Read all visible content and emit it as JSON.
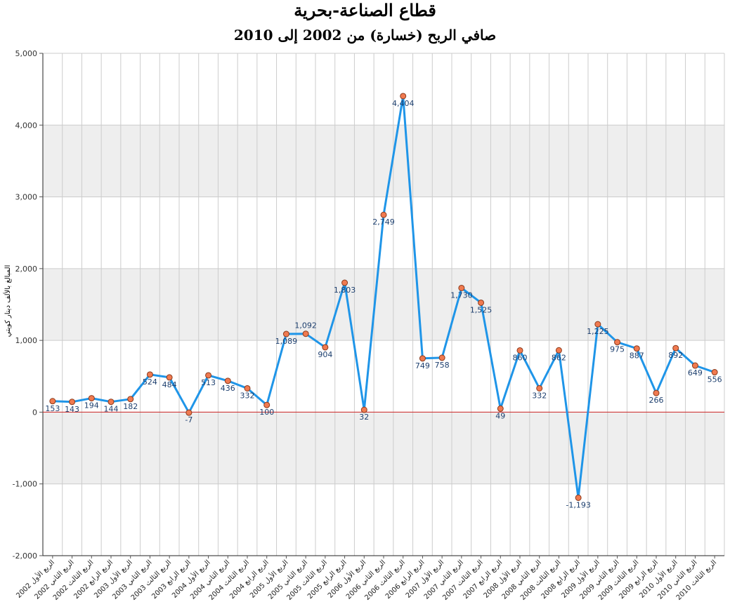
{
  "chart_data": {
    "type": "line",
    "title": "قطاع الصناعة-بحرية",
    "subtitle": "صافي الربح (خسارة) من 2002 إلى 2010",
    "ylabel": "المبالغ بالألف دينار كويتي",
    "xlabel": "",
    "ylim": [
      -2000,
      5000
    ],
    "yticks": [
      -2000,
      -1000,
      0,
      1000,
      2000,
      3000,
      4000,
      5000
    ],
    "ytick_labels": [
      "-2,000",
      "-1,000",
      "0",
      "1,000",
      "2,000",
      "3,000",
      "4,000",
      "5,000"
    ],
    "grid": true,
    "legend": "none",
    "categories": [
      "الربع الأول 2002",
      "الربع الثاني 2002",
      "الربع الثالث 2002",
      "الربع الرابع 2002",
      "الربع الأول 2003",
      "الربع الثاني 2003",
      "الربع الثالث 2003",
      "الربع الرابع 2003",
      "الربع الأول 2004",
      "الربع الثاني 2004",
      "الربع الثالث 2004",
      "الربع الرابع 2004",
      "الربع الأول 2005",
      "الربع الثاني 2005",
      "الربع الثالث 2005",
      "الربع الرابع 2005",
      "الربع الأول 2006",
      "الربع الثاني 2006",
      "الربع الثالث 2006",
      "الربع الرابع 2006",
      "الربع الأول 2007",
      "الربع الثاني 2007",
      "الربع الثالث 2007",
      "الربع الرابع 2007",
      "الربع الأول 2008",
      "الربع الثاني 2008",
      "الربع الثالث 2008",
      "الربع الرابع 2008",
      "الربع الأول 2009",
      "الربع الثاني 2009",
      "الربع الثالث 2009",
      "الربع الرابع 2009",
      "الربع الأول 2010",
      "الربع الثاني 2010",
      "الربع الثالث 2010"
    ],
    "values": [
      153,
      143,
      194,
      144,
      182,
      524,
      484,
      -7,
      513,
      436,
      332,
      100,
      1089,
      1092,
      904,
      1803,
      32,
      2749,
      4404,
      749,
      758,
      1730,
      1525,
      49,
      860,
      332,
      862,
      -1193,
      1225,
      975,
      887,
      266,
      892,
      649,
      556
    ],
    "value_labels": [
      "153",
      "143",
      "194",
      "144",
      "182",
      "524",
      "484",
      "-7",
      "513",
      "436",
      "332",
      "100",
      "1,089",
      "1,092",
      "904",
      "1,803",
      "32",
      "2,749",
      "4,404",
      "749",
      "758",
      "1,730",
      "1,525",
      "49",
      "860",
      "332",
      "862",
      "-1,193",
      "1,225",
      "975",
      "887",
      "266",
      "892",
      "649",
      "556"
    ],
    "colors": {
      "line": "#1f95e8",
      "marker_fill": "#f07a50",
      "marker_stroke": "#8a3a1c",
      "zero_line": "#cc2222",
      "band": "#eeeeee",
      "grid": "#cccccc",
      "label": "#1d3f6e"
    }
  }
}
